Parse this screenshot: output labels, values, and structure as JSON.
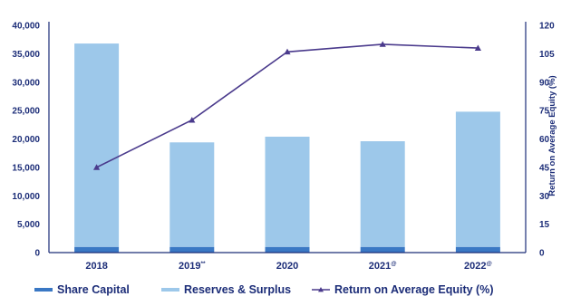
{
  "chart_data": {
    "type": "bar",
    "categories": [
      {
        "label": "2018",
        "sup": ""
      },
      {
        "label": "2019",
        "sup": "**"
      },
      {
        "label": "2020",
        "sup": ""
      },
      {
        "label": "2021",
        "sup": "@"
      },
      {
        "label": "2022",
        "sup": "@"
      }
    ],
    "series": [
      {
        "name": "Share Capital",
        "kind": "bar",
        "axis": "left",
        "color": "#3a78c4",
        "values": [
          1000,
          1000,
          1000,
          1000,
          1000
        ]
      },
      {
        "name": "Reserves & Surplus",
        "kind": "bar",
        "axis": "left",
        "color": "#9dc8ea",
        "values": [
          35800,
          18400,
          19400,
          18600,
          23800
        ]
      },
      {
        "name": "Return on Average Equity (%)",
        "kind": "line",
        "axis": "right",
        "color": "#4a3a8c",
        "values": [
          45,
          70,
          106,
          110,
          108
        ]
      }
    ],
    "stacked": true,
    "ylim": [
      0,
      40000
    ],
    "y_ticks": [
      "0",
      "5,000",
      "10,000",
      "15,000",
      "20,000",
      "25,000",
      "30,000",
      "35,000",
      "40,000"
    ],
    "y2lim": [
      0,
      120
    ],
    "y2_ticks": [
      "0",
      "15",
      "30",
      "45",
      "60",
      "75",
      "90",
      "105",
      "120"
    ],
    "y2label": "Return on Average Equity (%)",
    "grid": false,
    "legend_position": "bottom",
    "title": "",
    "xlabel": "",
    "ylabel": ""
  },
  "colors": {
    "axis": "#1c2d78",
    "text": "#1c2d78"
  }
}
